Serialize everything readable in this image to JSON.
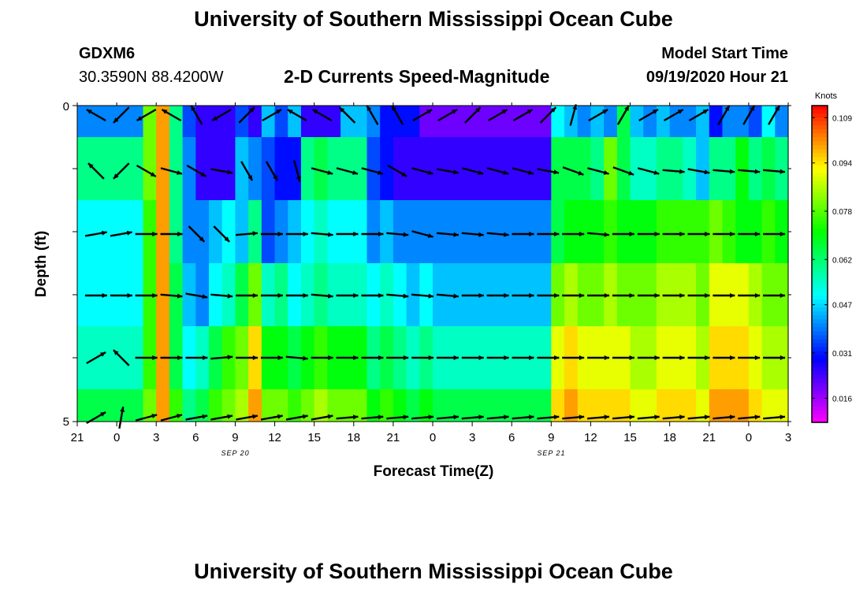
{
  "page": {
    "title_top": "University of Southern Mississippi Ocean Cube",
    "title_bottom": "University of Southern Mississippi Ocean Cube",
    "station_id": "GDXM6",
    "station_coords": "30.3590N 88.4200W",
    "chart_heading": "2-D Currents Speed-Magnitude",
    "model_start_label": "Model Start Time",
    "model_start_value": "09/19/2020 Hour 21"
  },
  "chart_data": {
    "type": "heatmap",
    "title": "2-D Currents Speed-Magnitude",
    "xlabel": "Forecast Time(Z)",
    "ylabel": "Depth (ft)",
    "x_ticks": [
      "21",
      "0",
      "3",
      "6",
      "9",
      "12",
      "15",
      "18",
      "21",
      "0",
      "3",
      "6",
      "9",
      "12",
      "15",
      "18",
      "21",
      "0",
      "3"
    ],
    "x_date_labels": [
      "SEP 20",
      "SEP 21"
    ],
    "y_ticks": [
      "0",
      "5"
    ],
    "ylim": [
      0,
      5
    ],
    "x_range_hours": [
      0,
      54
    ],
    "colorbar": {
      "unit_label": "Knots",
      "ticks": [
        "0.109",
        "0.094",
        "0.078",
        "0.062",
        "0.047",
        "0.031",
        "0.016"
      ],
      "tick_values": [
        0.109,
        0.094,
        0.078,
        0.062,
        0.047,
        0.031,
        0.016
      ],
      "range": [
        0.008,
        0.113
      ]
    },
    "depth_rows_ft": [
      0.5,
      1.5,
      2.5,
      3.5,
      4.5,
      5.0
    ],
    "speed_rows_knots": [
      [
        0.04,
        0.04,
        0.04,
        0.04,
        0.04,
        0.08,
        0.1,
        0.06,
        0.035,
        0.025,
        0.025,
        0.025,
        0.035,
        0.025,
        0.045,
        0.035,
        0.045,
        0.025,
        0.025,
        0.025,
        0.045,
        0.045,
        0.04,
        0.03,
        0.03,
        0.03,
        0.02,
        0.02,
        0.02,
        0.02,
        0.02,
        0.02,
        0.02,
        0.02,
        0.02,
        0.02,
        0.05,
        0.045,
        0.04,
        0.045,
        0.04,
        0.065,
        0.045,
        0.04,
        0.045,
        0.04,
        0.04,
        0.045,
        0.03,
        0.04,
        0.04,
        0.035,
        0.05,
        0.04
      ],
      [
        0.06,
        0.06,
        0.06,
        0.06,
        0.06,
        0.08,
        0.1,
        0.06,
        0.04,
        0.025,
        0.025,
        0.025,
        0.045,
        0.04,
        0.035,
        0.03,
        0.03,
        0.06,
        0.065,
        0.06,
        0.06,
        0.06,
        0.035,
        0.03,
        0.025,
        0.025,
        0.025,
        0.025,
        0.025,
        0.025,
        0.025,
        0.025,
        0.025,
        0.025,
        0.025,
        0.025,
        0.065,
        0.065,
        0.065,
        0.06,
        0.08,
        0.065,
        0.055,
        0.055,
        0.06,
        0.06,
        0.055,
        0.045,
        0.06,
        0.06,
        0.07,
        0.06,
        0.065,
        0.06
      ],
      [
        0.05,
        0.05,
        0.05,
        0.05,
        0.05,
        0.075,
        0.1,
        0.06,
        0.04,
        0.04,
        0.045,
        0.05,
        0.045,
        0.06,
        0.035,
        0.04,
        0.045,
        0.05,
        0.055,
        0.05,
        0.05,
        0.05,
        0.04,
        0.045,
        0.04,
        0.04,
        0.04,
        0.04,
        0.04,
        0.04,
        0.04,
        0.04,
        0.04,
        0.04,
        0.04,
        0.04,
        0.065,
        0.07,
        0.07,
        0.07,
        0.075,
        0.07,
        0.07,
        0.07,
        0.075,
        0.075,
        0.075,
        0.075,
        0.08,
        0.075,
        0.07,
        0.07,
        0.075,
        0.07
      ],
      [
        0.05,
        0.05,
        0.05,
        0.05,
        0.05,
        0.075,
        0.1,
        0.065,
        0.045,
        0.04,
        0.05,
        0.055,
        0.065,
        0.08,
        0.055,
        0.06,
        0.05,
        0.055,
        0.06,
        0.055,
        0.055,
        0.055,
        0.05,
        0.055,
        0.05,
        0.045,
        0.05,
        0.045,
        0.045,
        0.045,
        0.045,
        0.045,
        0.045,
        0.045,
        0.045,
        0.045,
        0.08,
        0.085,
        0.08,
        0.08,
        0.085,
        0.08,
        0.08,
        0.08,
        0.085,
        0.085,
        0.085,
        0.08,
        0.09,
        0.09,
        0.09,
        0.085,
        0.08,
        0.08
      ],
      [
        0.055,
        0.055,
        0.055,
        0.055,
        0.055,
        0.075,
        0.1,
        0.065,
        0.05,
        0.055,
        0.065,
        0.075,
        0.08,
        0.095,
        0.07,
        0.07,
        0.065,
        0.07,
        0.075,
        0.07,
        0.07,
        0.07,
        0.06,
        0.065,
        0.06,
        0.055,
        0.06,
        0.055,
        0.055,
        0.055,
        0.055,
        0.055,
        0.055,
        0.055,
        0.055,
        0.055,
        0.09,
        0.095,
        0.09,
        0.09,
        0.09,
        0.09,
        0.085,
        0.085,
        0.09,
        0.09,
        0.09,
        0.085,
        0.095,
        0.095,
        0.095,
        0.09,
        0.085,
        0.085
      ],
      [
        0.065,
        0.065,
        0.065,
        0.065,
        0.065,
        0.08,
        0.1,
        0.075,
        0.06,
        0.065,
        0.075,
        0.08,
        0.085,
        0.1,
        0.08,
        0.08,
        0.075,
        0.08,
        0.085,
        0.08,
        0.08,
        0.08,
        0.07,
        0.075,
        0.07,
        0.065,
        0.07,
        0.065,
        0.065,
        0.065,
        0.065,
        0.065,
        0.065,
        0.065,
        0.065,
        0.065,
        0.095,
        0.1,
        0.095,
        0.095,
        0.095,
        0.095,
        0.09,
        0.09,
        0.095,
        0.095,
        0.095,
        0.09,
        0.1,
        0.1,
        0.1,
        0.095,
        0.09,
        0.09
      ]
    ],
    "vectors_direction_deg_by_depth": {
      "0": [
        300,
        225,
        240,
        300,
        330,
        240,
        45,
        60,
        300,
        300,
        315,
        330,
        330,
        60,
        60,
        45,
        60,
        60,
        45,
        15,
        60,
        30,
        60,
        60,
        60,
        30,
        30,
        30
      ],
      "1": [
        315,
        225,
        120,
        105,
        120,
        100,
        150,
        150,
        165,
        105,
        105,
        105,
        120,
        105,
        100,
        105,
        105,
        105,
        100,
        110,
        105,
        110,
        105,
        95,
        100,
        95,
        95,
        95
      ],
      "2": [
        80,
        80,
        90,
        90,
        135,
        135,
        85,
        90,
        90,
        95,
        90,
        90,
        95,
        105,
        95,
        95,
        95,
        90,
        90,
        90,
        95,
        90,
        90,
        90,
        90,
        90,
        90,
        90
      ],
      "3": [
        90,
        90,
        90,
        95,
        100,
        95,
        90,
        90,
        90,
        95,
        90,
        90,
        95,
        95,
        95,
        90,
        90,
        90,
        90,
        90,
        90,
        90,
        90,
        90,
        90,
        90,
        90,
        90
      ],
      "4": [
        60,
        315,
        90,
        90,
        90,
        85,
        90,
        90,
        95,
        90,
        90,
        90,
        90,
        90,
        90,
        90,
        90,
        90,
        90,
        90,
        90,
        90,
        90,
        90,
        90,
        90,
        90,
        90
      ],
      "5": [
        60,
        10,
        75,
        75,
        80,
        80,
        80,
        80,
        80,
        80,
        85,
        85,
        85,
        85,
        85,
        85,
        85,
        85,
        85,
        85,
        85,
        85,
        85,
        85,
        85,
        85,
        85,
        85
      ]
    },
    "gridlines": false,
    "legend_position": "right"
  }
}
